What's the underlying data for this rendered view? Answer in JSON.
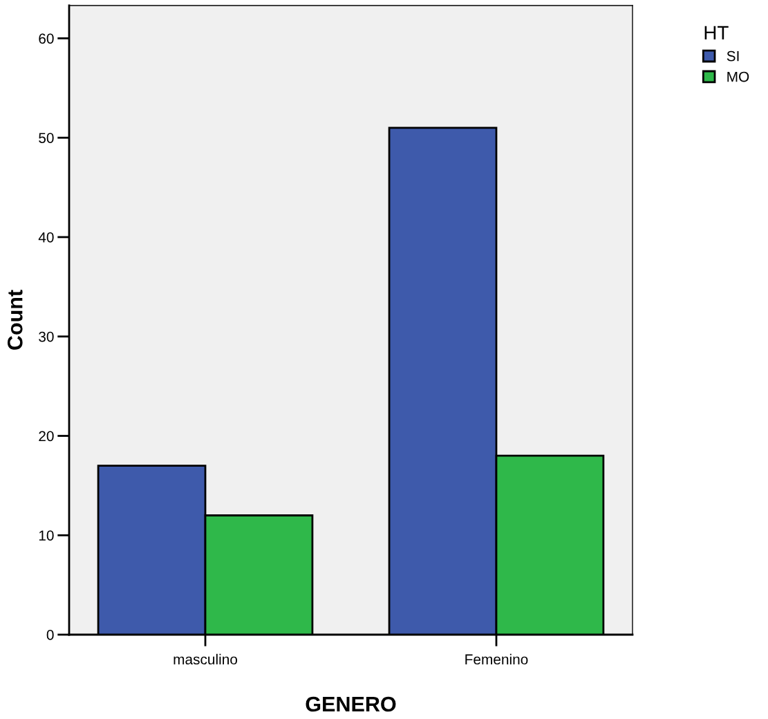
{
  "chart_data": {
    "type": "bar",
    "xlabel": "GENERO",
    "ylabel": "Count",
    "legend_title": "HT",
    "categories": [
      "masculino",
      "Femenino"
    ],
    "series": [
      {
        "name": "SI",
        "color": "#3e5aab",
        "values": [
          17,
          51
        ]
      },
      {
        "name": "MO",
        "color": "#2fb84a",
        "values": [
          12,
          18
        ]
      }
    ],
    "ylim": [
      0,
      63.3
    ],
    "yticks": [
      0,
      10,
      20,
      30,
      40,
      50,
      60
    ],
    "grid": false,
    "legend": "top right"
  }
}
